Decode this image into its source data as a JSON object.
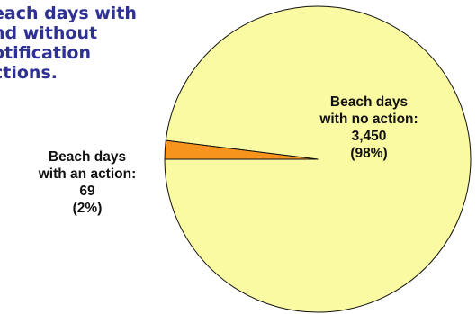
{
  "title_lines": [
    "each days with",
    "nd without",
    "otification",
    "ctions."
  ],
  "chart_data": {
    "type": "pie",
    "title": "each days with nd without otification ctions.",
    "slices": [
      {
        "label_lines": [
          "Beach days",
          "with no action:",
          "3,450",
          "(98%)"
        ],
        "value": 3450,
        "percent": 98,
        "color": "#fafaa2"
      },
      {
        "label_lines": [
          "Beach days",
          "with an action:",
          "69",
          "(2%)"
        ],
        "value": 69,
        "percent": 2,
        "color": "#f7941d"
      }
    ],
    "legend": "none"
  }
}
